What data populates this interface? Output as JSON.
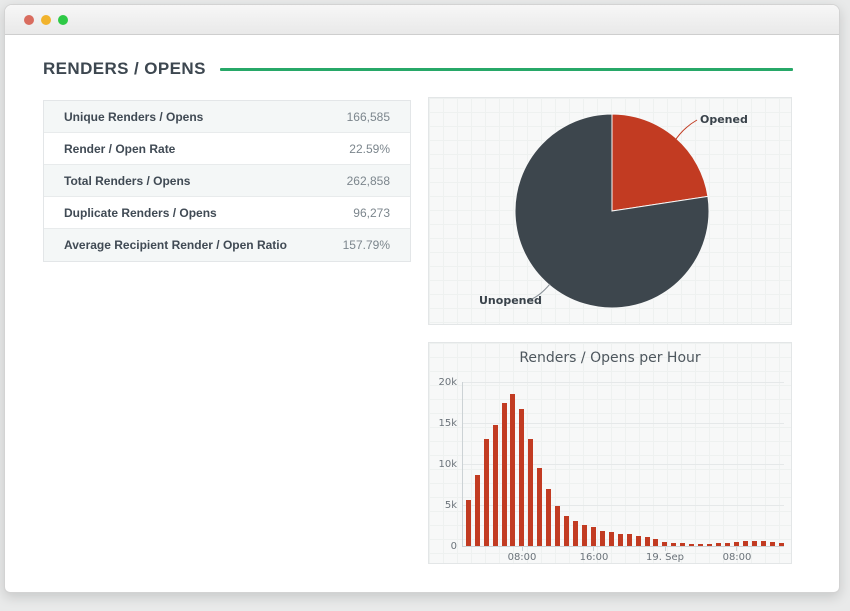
{
  "header": {
    "title": "RENDERS / OPENS",
    "accent_color": "#27a868"
  },
  "stats_table": {
    "rows": [
      {
        "label": "Unique Renders / Opens",
        "value": "166,585"
      },
      {
        "label": "Render / Open Rate",
        "value": "22.59%"
      },
      {
        "label": "Total Renders / Opens",
        "value": "262,858"
      },
      {
        "label": "Duplicate Renders / Opens",
        "value": "96,273"
      },
      {
        "label": "Average Recipient Render / Open Ratio",
        "value": "157.79%"
      }
    ]
  },
  "chart_data": [
    {
      "type": "pie",
      "title": "",
      "slices": [
        {
          "label": "Opened",
          "value": 22.59,
          "color": "#c23b22"
        },
        {
          "label": "Unopened",
          "value": 77.41,
          "color": "#3d464d"
        }
      ],
      "unit": "percent of total renders/opens",
      "legend_position": "callout-labels"
    },
    {
      "type": "bar",
      "title": "Renders / Opens per Hour",
      "xlabel": "",
      "ylabel": "",
      "ylim": [
        0,
        20000
      ],
      "grid": true,
      "bar_color": "#c23b22",
      "yticks": [
        "0",
        "5k",
        "10k",
        "15k",
        "20k"
      ],
      "xticks": [
        {
          "index": 6,
          "label": "08:00"
        },
        {
          "index": 14,
          "label": "16:00"
        },
        {
          "index": 22,
          "label": "19. Sep"
        },
        {
          "index": 30,
          "label": "08:00"
        }
      ],
      "values": [
        5600,
        8700,
        13100,
        14700,
        17400,
        18500,
        16700,
        13000,
        9500,
        6900,
        4900,
        3700,
        3100,
        2600,
        2300,
        1850,
        1700,
        1500,
        1450,
        1250,
        1050,
        800,
        500,
        400,
        330,
        250,
        200,
        250,
        330,
        400,
        500,
        600,
        650,
        600,
        500,
        400
      ]
    }
  ]
}
